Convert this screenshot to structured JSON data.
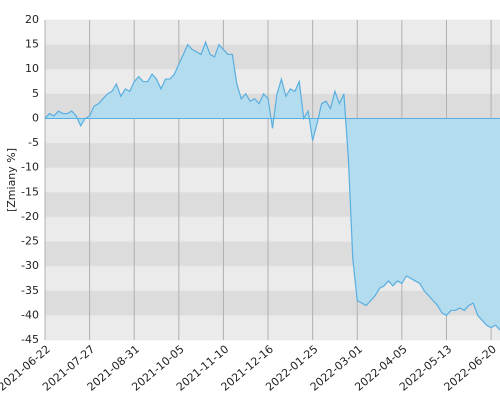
{
  "chart_data": {
    "type": "area",
    "y_label": "[Zmiany %]",
    "xlim": [
      0,
      102
    ],
    "ylim": [
      -45,
      20
    ],
    "yticks": [
      20,
      15,
      10,
      5,
      0,
      -5,
      -10,
      -15,
      -20,
      -25,
      -30,
      -35,
      -40,
      -45
    ],
    "xticks": [
      {
        "value": 0,
        "label": "2021-06-22"
      },
      {
        "value": 10,
        "label": "2021-07-27"
      },
      {
        "value": 20,
        "label": "2021-08-31"
      },
      {
        "value": 30,
        "label": "2021-10-05"
      },
      {
        "value": 40,
        "label": "2021-11-10"
      },
      {
        "value": 50,
        "label": "2021-12-16"
      },
      {
        "value": 60,
        "label": "2022-01-25"
      },
      {
        "value": 70,
        "label": "2022-03-01"
      },
      {
        "value": 80,
        "label": "2022-04-05"
      },
      {
        "value": 90,
        "label": "2022-05-13"
      },
      {
        "value": 100,
        "label": "2022-06-20"
      }
    ],
    "grid": true,
    "color": "#5aaee0",
    "fill": "#b3dcee",
    "values": [
      0,
      1,
      0.5,
      1.5,
      1,
      1,
      1.5,
      0.5,
      -1.5,
      0,
      0.5,
      2.5,
      3,
      4,
      5,
      5.5,
      7,
      4.5,
      6,
      5.5,
      7.5,
      8.5,
      7.5,
      7.5,
      9,
      8,
      6,
      8,
      8,
      9,
      11,
      13,
      15,
      14,
      13.5,
      13,
      15.5,
      13,
      12.5,
      15,
      14,
      13,
      13,
      7,
      4,
      5,
      3.5,
      4,
      3,
      5,
      4,
      -2,
      5,
      8,
      4.5,
      6,
      5.5,
      7.5,
      0,
      1.5,
      -4.5,
      -1,
      3,
      3.5,
      2,
      5.5,
      3,
      5,
      -8,
      -28.5,
      -37,
      -37.5,
      -38,
      -37,
      -36,
      -34.5,
      -34,
      -33,
      -34,
      -33,
      -33.5,
      -32,
      -32.5,
      -33,
      -33.5,
      -35,
      -36,
      -37,
      -38,
      -39.5,
      -40,
      -39,
      -39,
      -38.5,
      -39,
      -38,
      -37.5,
      -40,
      -41,
      -42,
      -42.5,
      -42,
      -43
    ]
  }
}
